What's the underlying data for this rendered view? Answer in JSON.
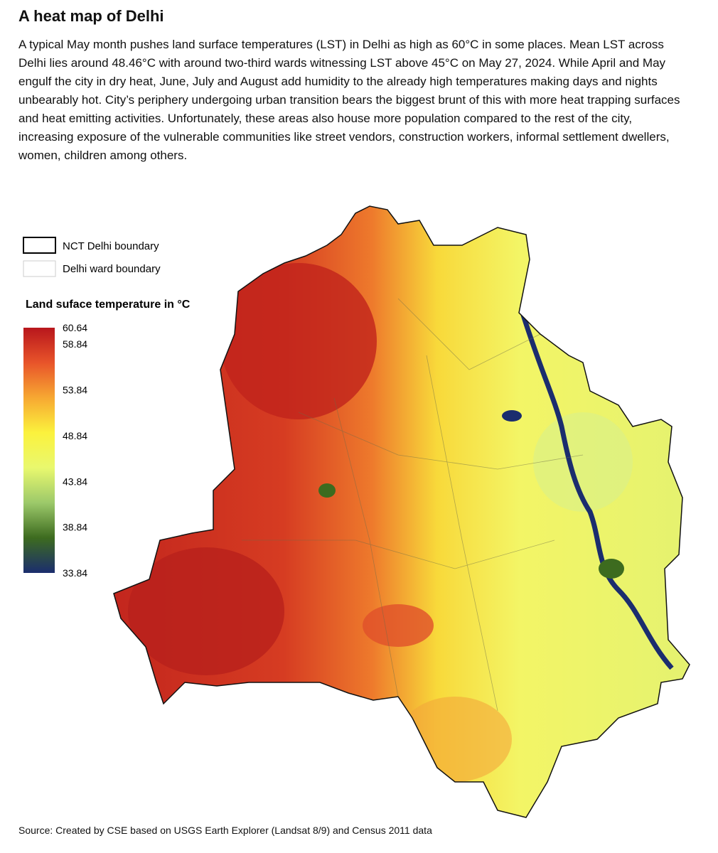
{
  "header": {
    "title": "A heat map of Delhi",
    "description": "A typical May month pushes land surface temperatures (LST) in Delhi as high as 60°C in some places. Mean LST across Delhi lies around 48.46°C with around two-third wards witnessing LST above 45°C on May 27, 2024. While April and May engulf the city in dry heat, June, July and August add humidity to the already high temperatures making days and nights unbearably hot. City’s periphery undergoing urban transition bears the biggest brunt of this with more heat trapping surfaces and heat emitting activities. Unfortunately, these areas also house more population compared to the rest of the city, increasing exposure of the vulnerable communities like street vendors, construction workers, informal settlement dwellers, women, children among others."
  },
  "legend": {
    "items": [
      "NCT Delhi boundary",
      "Delhi ward boundary"
    ],
    "colorbar": {
      "title": "Land suface temperature in °C",
      "range": [
        33.84,
        60.64
      ],
      "ticks": [
        60.64,
        58.84,
        53.84,
        48.84,
        43.84,
        38.84,
        33.84
      ],
      "colors": [
        "#1b2d6e",
        "#3d6b1f",
        "#9cc96a",
        "#e9f86e",
        "#fbf23d",
        "#f7a832",
        "#e8542a",
        "#b8161c"
      ]
    }
  },
  "footer": {
    "source": "Source: Created by CSE based on USGS Earth Explorer (Landsat 8/9) and Census 2011 data"
  }
}
